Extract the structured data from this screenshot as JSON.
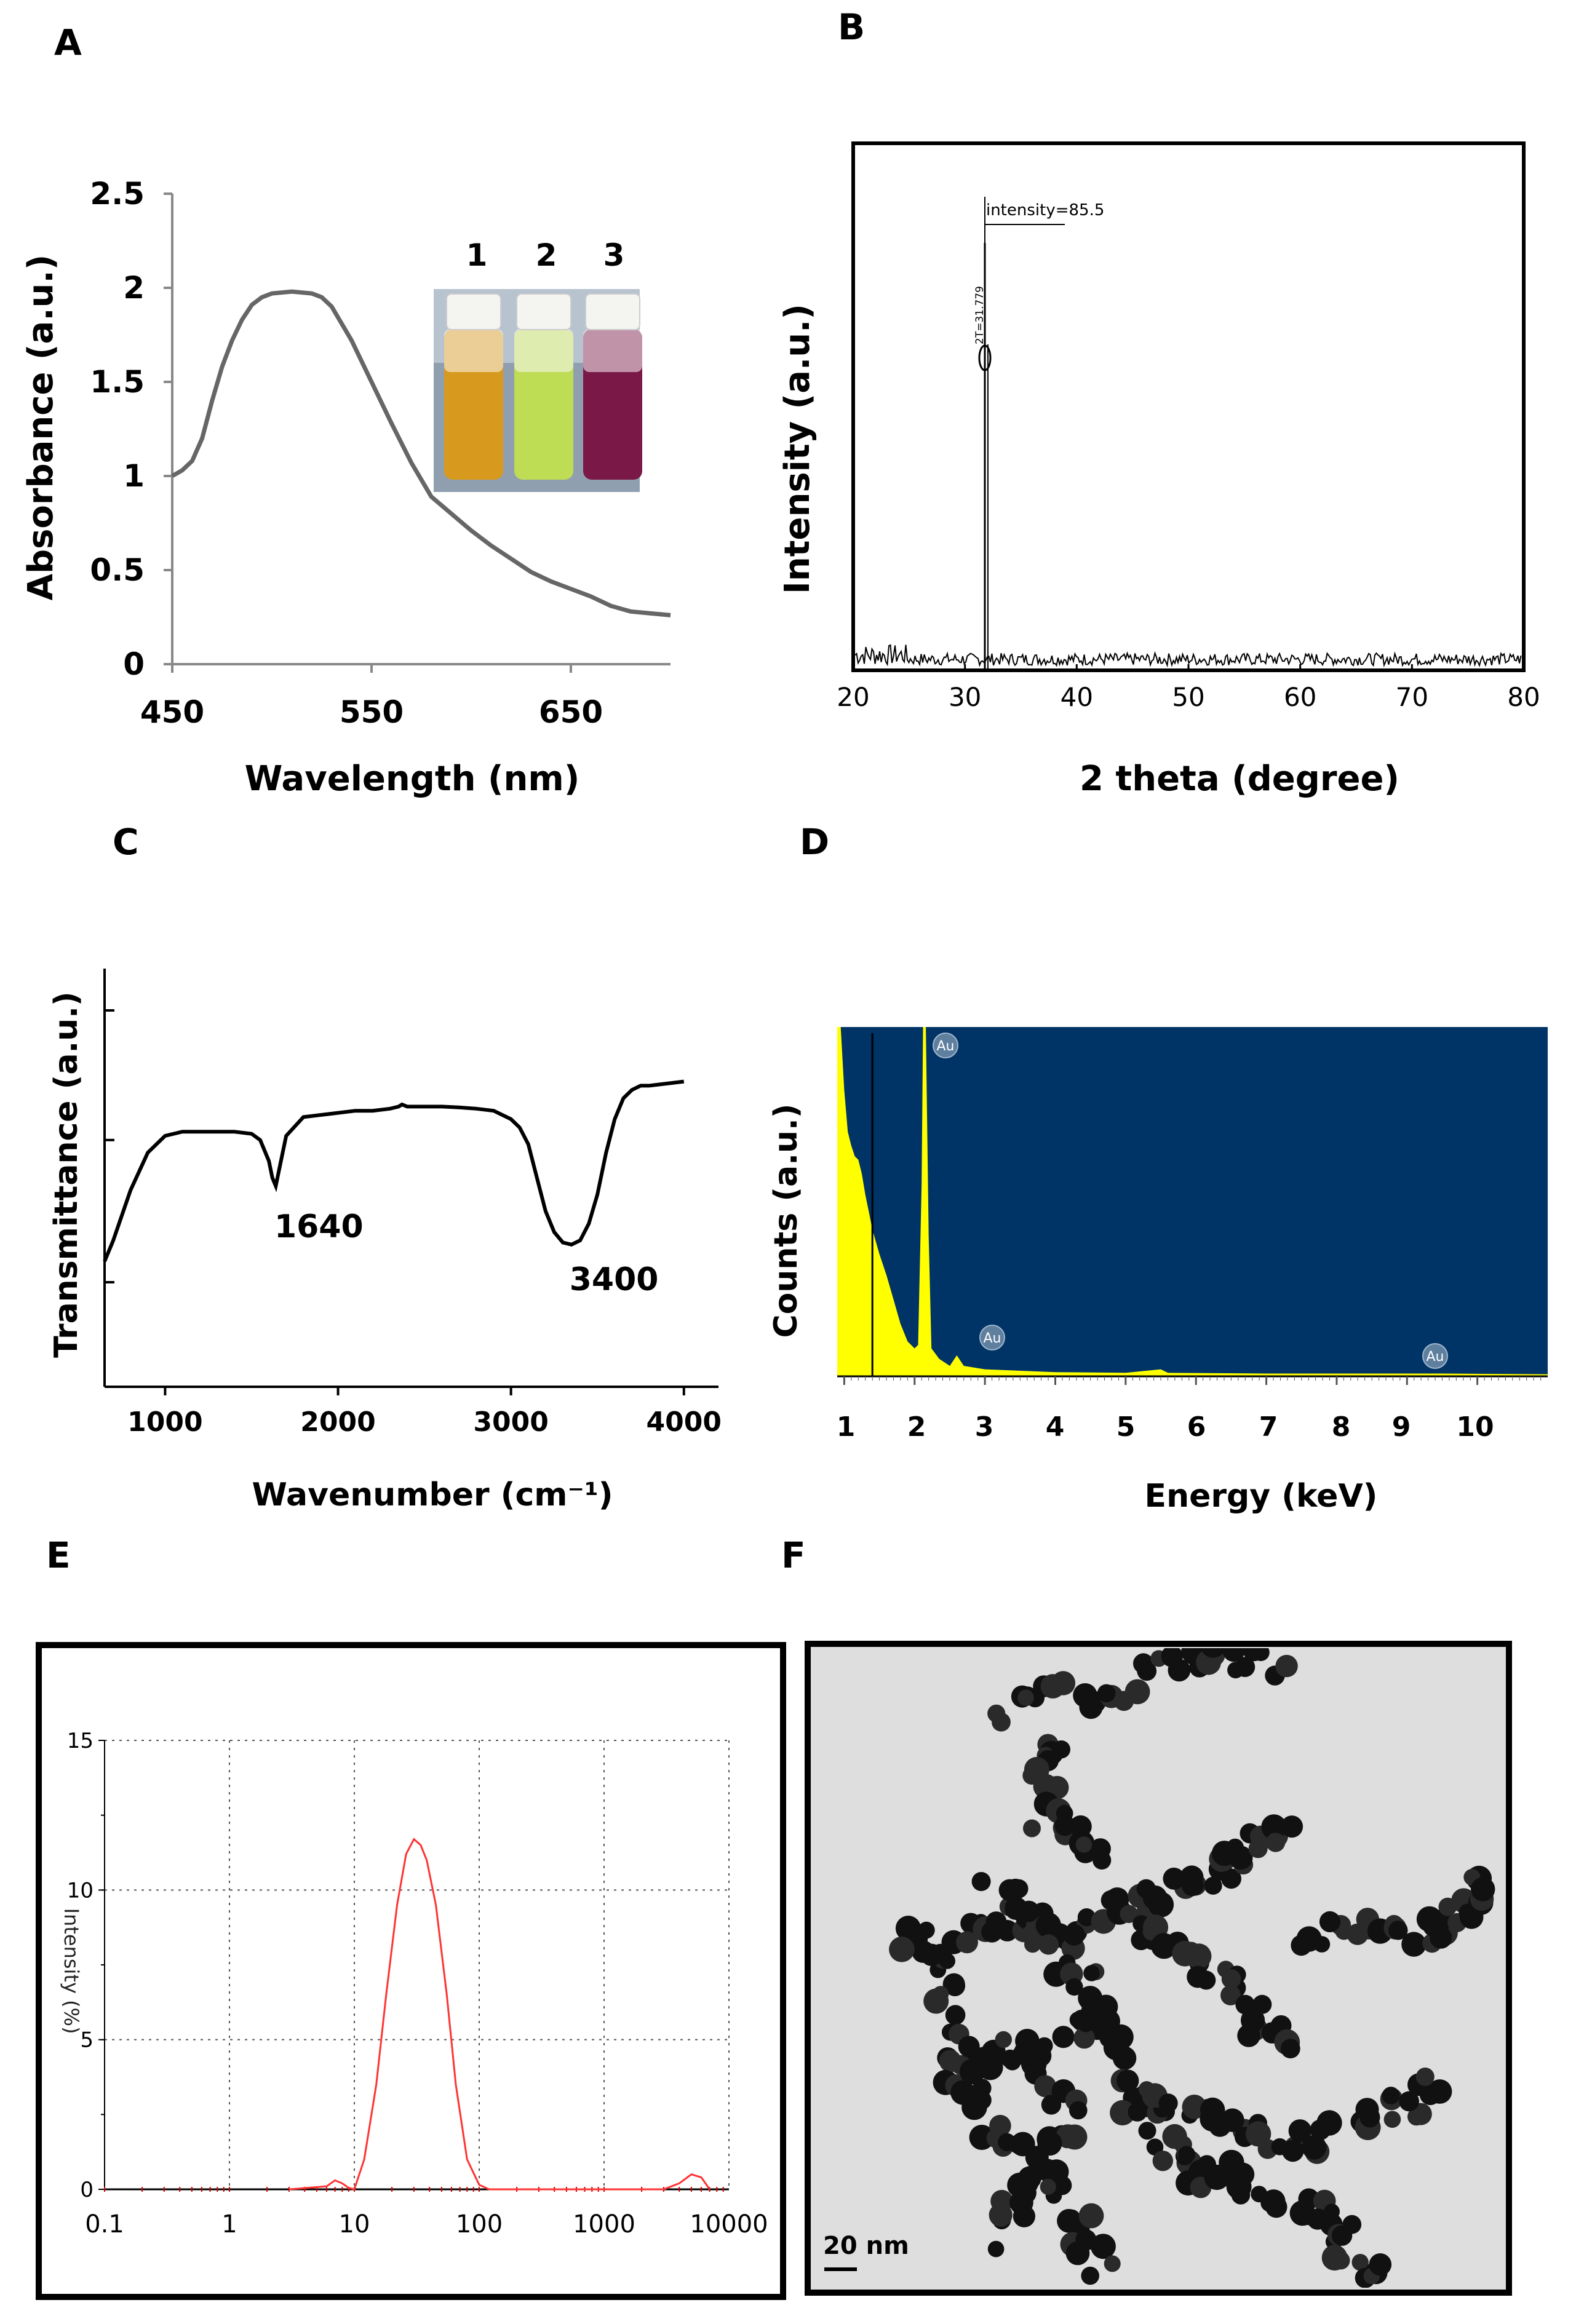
{
  "panels": {
    "A": {
      "label": "A",
      "chart": {
        "type": "line",
        "xlabel": "Wavelength (nm)",
        "ylabel": "Absorbance (a.u.)",
        "xlim": [
          450,
          700
        ],
        "ylim": [
          0,
          2.5
        ],
        "xticks": [
          450,
          550,
          650
        ],
        "yticks": [
          0,
          0.5,
          1,
          1.5,
          2,
          2.5
        ],
        "ytick_labels": [
          "0",
          "0.5",
          "1",
          "1.5",
          "2",
          "2.5"
        ],
        "x": [
          450,
          455,
          460,
          465,
          470,
          475,
          480,
          485,
          490,
          495,
          500,
          510,
          520,
          525,
          530,
          540,
          550,
          560,
          570,
          580,
          590,
          600,
          610,
          620,
          630,
          640,
          650,
          660,
          670,
          680,
          690,
          700
        ],
        "y": [
          1.0,
          1.03,
          1.08,
          1.2,
          1.4,
          1.58,
          1.72,
          1.83,
          1.91,
          1.95,
          1.97,
          1.98,
          1.97,
          1.95,
          1.9,
          1.72,
          1.5,
          1.28,
          1.07,
          0.89,
          0.8,
          0.71,
          0.63,
          0.56,
          0.49,
          0.44,
          0.4,
          0.36,
          0.31,
          0.28,
          0.27,
          0.26
        ],
        "color": "#666666",
        "inset": {
          "vial_labels": [
            "1",
            "2",
            "3"
          ],
          "vial_colors": [
            "#d89a1e",
            "#bfdc55",
            "#7a1848"
          ]
        }
      }
    },
    "B": {
      "label": "B",
      "chart": {
        "type": "line",
        "xlabel": "2 theta (degree)",
        "ylabel": "Intensity (a.u.)",
        "xlim": [
          20,
          80
        ],
        "xticks": [
          20,
          30,
          40,
          50,
          60,
          70,
          80
        ],
        "peak_x": 31.779,
        "peak_annotation": "intensity=85.5",
        "peak_label": "2T=31.779"
      }
    },
    "C": {
      "label": "C",
      "chart": {
        "type": "line",
        "xlabel": "Wavenumber (cm⁻¹)",
        "ylabel": "Transmittance (a.u.)",
        "xlim": [
          650,
          4200
        ],
        "xticks": [
          1000,
          2000,
          3000,
          4000
        ],
        "x": [
          650,
          700,
          800,
          900,
          950,
          1000,
          1100,
          1200,
          1300,
          1400,
          1500,
          1550,
          1600,
          1620,
          1640,
          1660,
          1700,
          1800,
          1900,
          2000,
          2100,
          2200,
          2300,
          2350,
          2370,
          2400,
          2500,
          2600,
          2700,
          2800,
          2900,
          3000,
          3050,
          3100,
          3150,
          3200,
          3250,
          3300,
          3350,
          3400,
          3450,
          3500,
          3550,
          3600,
          3650,
          3700,
          3750,
          3800,
          3900,
          4000
        ],
        "y": [
          0.3,
          0.35,
          0.47,
          0.56,
          0.58,
          0.6,
          0.61,
          0.61,
          0.61,
          0.61,
          0.605,
          0.59,
          0.54,
          0.5,
          0.48,
          0.52,
          0.6,
          0.645,
          0.65,
          0.655,
          0.66,
          0.66,
          0.665,
          0.67,
          0.675,
          0.67,
          0.67,
          0.67,
          0.668,
          0.665,
          0.66,
          0.64,
          0.62,
          0.58,
          0.5,
          0.42,
          0.37,
          0.345,
          0.34,
          0.35,
          0.39,
          0.46,
          0.56,
          0.64,
          0.69,
          0.71,
          0.72,
          0.72,
          0.725,
          0.73
        ],
        "annotations": [
          {
            "x": 1640,
            "text": "1640"
          },
          {
            "x": 3400,
            "text": "3400"
          }
        ]
      }
    },
    "D": {
      "label": "D",
      "chart": {
        "type": "area",
        "xlabel": "Energy (keV)",
        "ylabel": "Counts (a.u.)",
        "xlim": [
          0.9,
          11.0
        ],
        "xticks": [
          1,
          2,
          3,
          4,
          5,
          6,
          7,
          8,
          9,
          10
        ],
        "background_color": "#003366",
        "fill_color": "#ffff00",
        "peaks": [
          {
            "x": 2.12,
            "label": "Au"
          },
          {
            "x": 2.2,
            "label": "Au"
          },
          {
            "x": 9.71,
            "label": "Au"
          }
        ]
      }
    },
    "E": {
      "label": "E",
      "chart": {
        "type": "line",
        "xlabel": "",
        "ylabel": "Intensity (%)",
        "xscale": "log",
        "xlim": [
          0.1,
          10000
        ],
        "ylim": [
          0,
          15
        ],
        "xticks": [
          "0.1",
          "1",
          "10",
          "100",
          "1000",
          "10000"
        ],
        "yticks": [
          0,
          5,
          10,
          15
        ],
        "ytick_labels": [
          "0",
          "5",
          "10",
          "15"
        ],
        "color": "#ff3333",
        "x": [
          3,
          6,
          7,
          8,
          9,
          10,
          12,
          15,
          18,
          22,
          26,
          30,
          34,
          38,
          45,
          55,
          65,
          80,
          100,
          120,
          150,
          3000,
          4000,
          5000,
          6000,
          7000
        ],
        "y": [
          0,
          0.1,
          0.3,
          0.2,
          0.05,
          0,
          1.0,
          3.5,
          6.5,
          9.5,
          11.2,
          11.7,
          11.5,
          11.0,
          9.5,
          6.5,
          3.5,
          1.0,
          0.15,
          0,
          0,
          0,
          0.2,
          0.5,
          0.4,
          0
        ]
      }
    },
    "F": {
      "label": "F",
      "scale_bar_text": "20 nm"
    }
  }
}
